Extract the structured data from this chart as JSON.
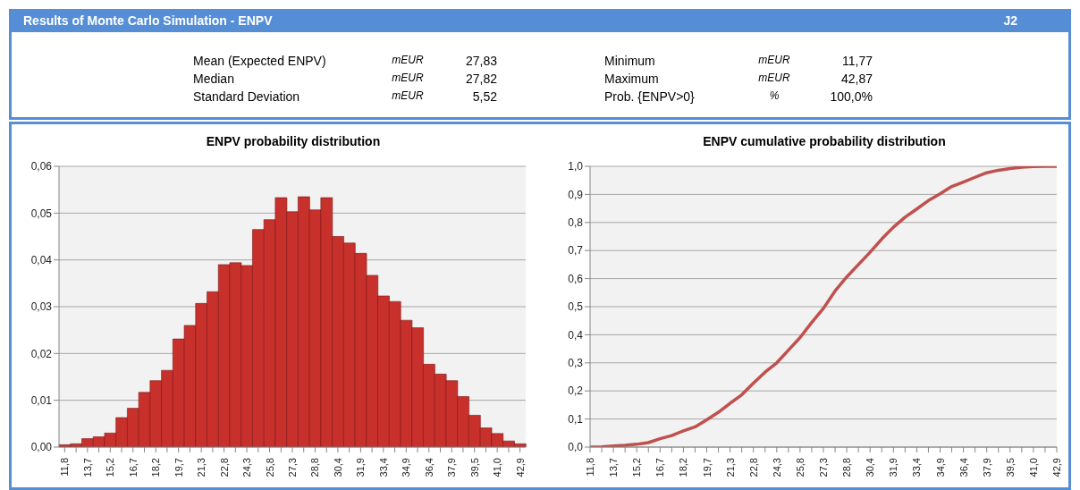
{
  "chart_data": [
    {
      "type": "other",
      "title": "Results of Monte Carlo Simulation - ENPV",
      "subtitle": "J2",
      "annotations": [
        "Mean (Expected ENPV)",
        "mEUR",
        "27,83",
        "Minimum",
        "mEUR",
        "11,77",
        "Median",
        "mEUR",
        "27,82",
        "Maximum",
        "mEUR",
        "42,87",
        "Standard Deviation",
        "mEUR",
        "5,52",
        "Prob. {ENPV>0}",
        "%",
        "100,0%"
      ]
    },
    {
      "type": "bar",
      "title": "ENPV probability distribution",
      "categories": [
        "11,8",
        null,
        "13,7",
        null,
        "15,2",
        null,
        "16,7",
        null,
        "18,2",
        null,
        "19,7",
        null,
        "21,3",
        null,
        "22,8",
        null,
        "24,3",
        null,
        "25,8",
        null,
        "27,3",
        null,
        "28,8",
        null,
        "30,4",
        null,
        "31,9",
        null,
        "33,4",
        null,
        "34,9",
        null,
        "36,4",
        null,
        "37,9",
        null,
        "39,5",
        null,
        "41,0",
        null,
        "42,9"
      ],
      "values": [
        0.0005,
        0.0007,
        0.0018,
        0.0022,
        0.003,
        0.0063,
        0.0083,
        0.0117,
        0.0142,
        0.0164,
        0.0231,
        0.026,
        0.0307,
        0.0332,
        0.039,
        0.0394,
        0.0388,
        0.0465,
        0.0486,
        0.0533,
        0.0503,
        0.0535,
        0.0507,
        0.0533,
        0.045,
        0.0436,
        0.0414,
        0.0367,
        0.0323,
        0.0311,
        0.0271,
        0.0255,
        0.0177,
        0.0156,
        0.0142,
        0.0108,
        0.0068,
        0.0041,
        0.0029,
        0.0013,
        0.0007
      ],
      "color": "#c8302c",
      "ylim": [
        0,
        0.06
      ],
      "yticks": [
        {
          "value": 0,
          "label": "0,00"
        },
        {
          "value": 0.01,
          "label": "0,01"
        },
        {
          "value": 0.02,
          "label": "0,02"
        },
        {
          "value": 0.03,
          "label": "0,03"
        },
        {
          "value": 0.04,
          "label": "0,04"
        },
        {
          "value": 0.05,
          "label": "0,05"
        },
        {
          "value": 0.06,
          "label": "0,06"
        }
      ],
      "grid": "y"
    },
    {
      "type": "line",
      "title": "ENPV cumulative probability distribution",
      "categories": [
        "11,8",
        null,
        "13,7",
        null,
        "15,2",
        null,
        "16,7",
        null,
        "18,2",
        null,
        "19,7",
        null,
        "21,3",
        null,
        "22,8",
        null,
        "24,3",
        null,
        "25,8",
        null,
        "27,3",
        null,
        "28,8",
        null,
        "30,4",
        null,
        "31,9",
        null,
        "33,4",
        null,
        "34,9",
        null,
        "36,4",
        null,
        "37,9",
        null,
        "39,5",
        null,
        "41,0",
        null,
        "42,9"
      ],
      "values": [
        0.0,
        0.001,
        0.004,
        0.006,
        0.01,
        0.016,
        0.03,
        0.041,
        0.058,
        0.072,
        0.097,
        0.124,
        0.156,
        0.186,
        0.228,
        0.267,
        0.3,
        0.345,
        0.39,
        0.444,
        0.494,
        0.556,
        0.606,
        0.65,
        0.694,
        0.741,
        0.783,
        0.819,
        0.848,
        0.878,
        0.902,
        0.928,
        0.944,
        0.961,
        0.977,
        0.986,
        0.992,
        0.997,
        0.999,
        1.0,
        1.0
      ],
      "color": "#c0504d",
      "ylim": [
        0,
        1
      ],
      "yticks": [
        {
          "value": 0,
          "label": "0,0"
        },
        {
          "value": 0.1,
          "label": "0,1"
        },
        {
          "value": 0.2,
          "label": "0,2"
        },
        {
          "value": 0.3,
          "label": "0,3"
        },
        {
          "value": 0.4,
          "label": "0,4"
        },
        {
          "value": 0.5,
          "label": "0,5"
        },
        {
          "value": 0.6,
          "label": "0,6"
        },
        {
          "value": 0.7,
          "label": "0,7"
        },
        {
          "value": 0.8,
          "label": "0,8"
        },
        {
          "value": 0.9,
          "label": "0,9"
        },
        {
          "value": 1,
          "label": "1,0"
        }
      ],
      "grid": "y",
      "marker": "none"
    }
  ]
}
